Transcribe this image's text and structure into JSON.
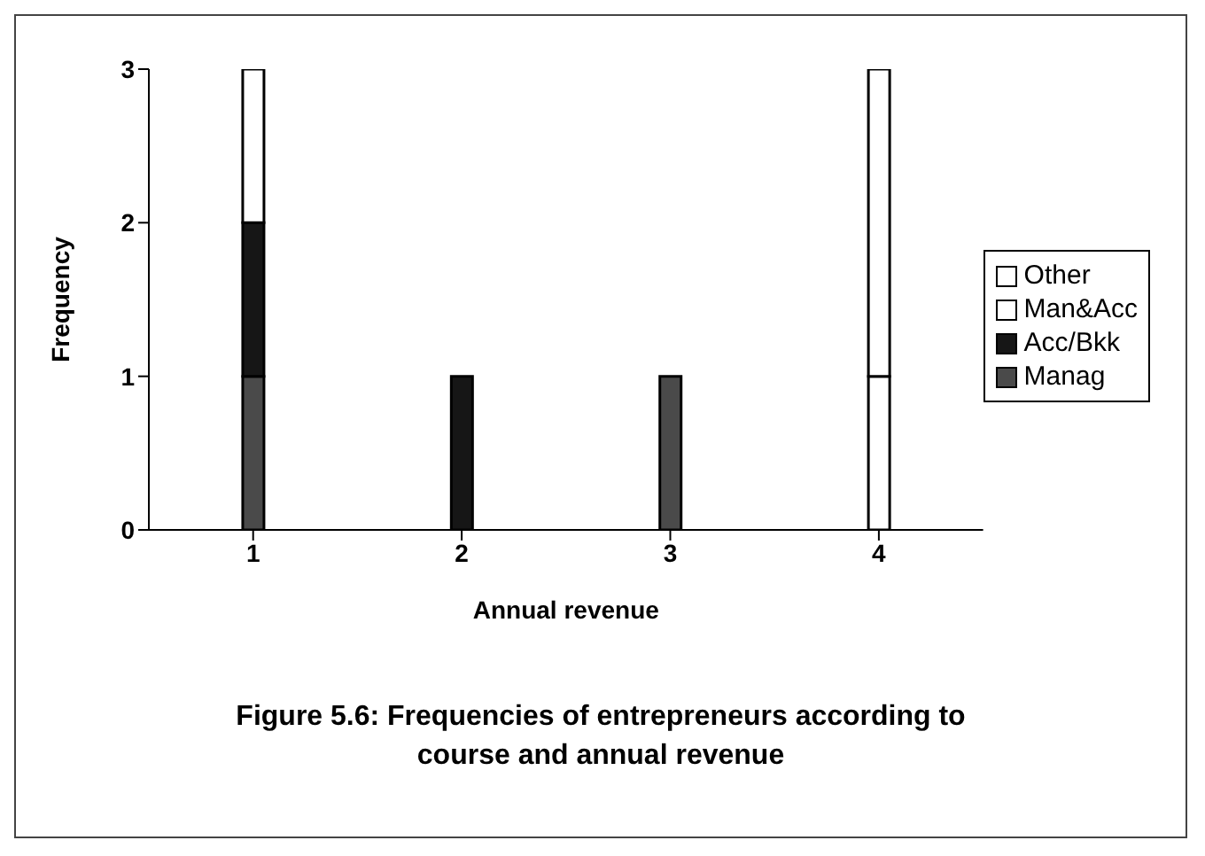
{
  "chart_data": {
    "type": "bar",
    "stacked": true,
    "xlabel": "Annual revenue",
    "ylabel": "Frequency",
    "categories": [
      "1",
      "2",
      "3",
      "4"
    ],
    "series": [
      {
        "name": "Manag",
        "color": "#4a4a4a",
        "values": [
          1,
          0,
          1,
          0
        ]
      },
      {
        "name": "Acc/Bkk",
        "color": "#161616",
        "values": [
          1,
          1,
          0,
          0
        ]
      },
      {
        "name": "Man&Acc",
        "color": "#ffffff",
        "values": [
          0,
          0,
          0,
          1
        ]
      },
      {
        "name": "Other",
        "color": "#ffffff",
        "values": [
          1,
          0,
          0,
          2
        ]
      }
    ],
    "ylim": [
      0,
      3
    ],
    "yticks": [
      0,
      1,
      2,
      3
    ],
    "legend": "right",
    "annotations": [
      "Figure 5.6: Frequencies of entrepreneurs according to course and annual revenue"
    ]
  }
}
